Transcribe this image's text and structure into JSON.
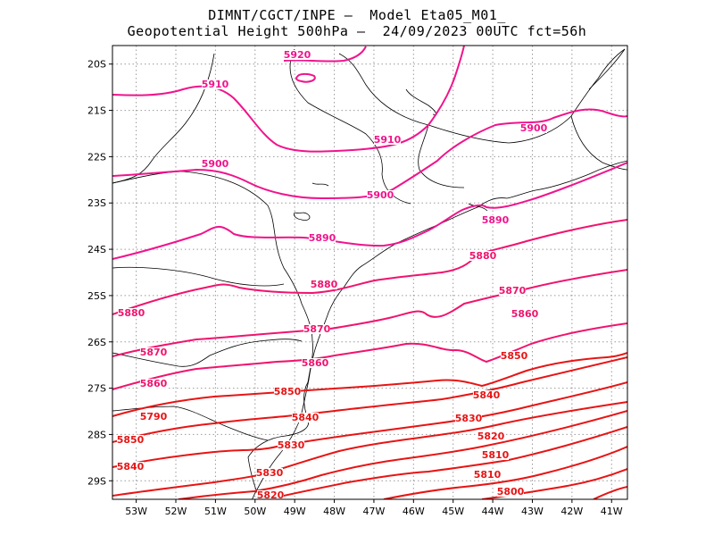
{
  "title": {
    "line1": "DIMNT/CGCT/INPE –  Model Eta05_M01_",
    "line2": "Geopotential Height 500hPa –  24/09/2023 00UTC fct=56h"
  },
  "map": {
    "lon_range": [
      -53.6,
      -40.6
    ],
    "lat_range": [
      -29.4,
      -19.6
    ],
    "lat_ticks": [
      "20S",
      "21S",
      "22S",
      "23S",
      "24S",
      "25S",
      "26S",
      "27S",
      "28S",
      "29S"
    ],
    "lon_ticks": [
      "53W",
      "52W",
      "51W",
      "50W",
      "49W",
      "48W",
      "47W",
      "46W",
      "45W",
      "44W",
      "43W",
      "42W",
      "41W"
    ],
    "gridlines": true,
    "grid_style": "dotted"
  },
  "colors": {
    "contour_high": "#f0148c",
    "contour_mid": "#f0146e",
    "contour_low": "#e81414",
    "coast": "#000000",
    "grid": "#9a9a9a"
  },
  "contour_labels": [
    "5920",
    "5910",
    "5910",
    "5900",
    "5900",
    "5900",
    "5890",
    "5890",
    "5880",
    "5880",
    "5880",
    "5870",
    "5870",
    "5870",
    "5860",
    "5860",
    "5860",
    "5850",
    "5850",
    "5850",
    "5840",
    "5840",
    "5840",
    "5830",
    "5830",
    "5830",
    "5820",
    "5820",
    "5810",
    "5810",
    "5800",
    "5790"
  ]
}
